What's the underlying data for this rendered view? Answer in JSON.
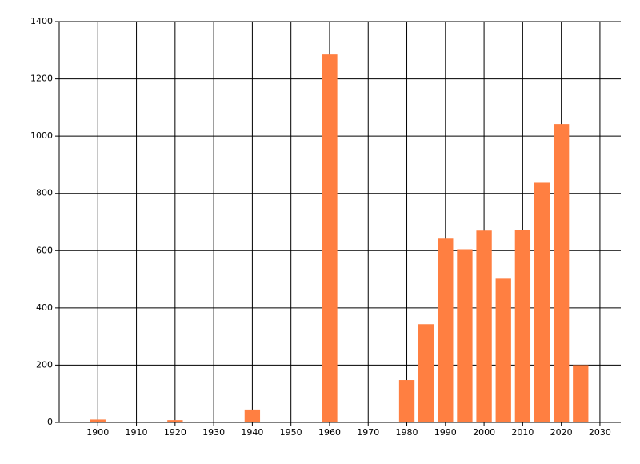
{
  "chart_data": {
    "type": "bar",
    "x": [
      1900,
      1920,
      1940,
      1960,
      1980,
      1985,
      1990,
      1995,
      2000,
      2005,
      2010,
      2015,
      2020,
      2025
    ],
    "values": [
      10,
      8,
      45,
      1285,
      148,
      343,
      642,
      605,
      670,
      502,
      673,
      837,
      1042,
      200
    ],
    "color": "#ff7f41",
    "bar_width": 4,
    "xlim": [
      1890,
      2035.4
    ],
    "xticks": [
      1900,
      1910,
      1920,
      1930,
      1940,
      1950,
      1960,
      1970,
      1980,
      1990,
      2000,
      2010,
      2020,
      2030
    ],
    "ylim": [
      0,
      1400
    ],
    "yticks": [
      0,
      200,
      400,
      600,
      800,
      1000,
      1200,
      1400
    ],
    "grid": true
  }
}
